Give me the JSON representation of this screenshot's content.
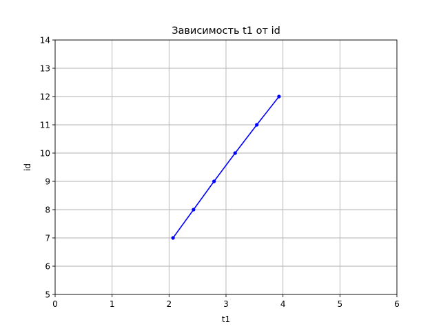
{
  "chart_data": {
    "type": "line",
    "title": "Зависимость t1 от id",
    "xlabel": "t1",
    "ylabel": "id",
    "xlim": [
      0,
      6
    ],
    "ylim": [
      5,
      14
    ],
    "xticks": [
      "0",
      "1",
      "2",
      "3",
      "4",
      "5",
      "6"
    ],
    "yticks": [
      "5",
      "6",
      "7",
      "8",
      "9",
      "10",
      "11",
      "12",
      "13",
      "14"
    ],
    "grid": true,
    "series": [
      {
        "color": "#0000ff",
        "marker": "circle",
        "points": [
          {
            "x": 2.07,
            "y": 7
          },
          {
            "x": 2.43,
            "y": 8
          },
          {
            "x": 2.79,
            "y": 9
          },
          {
            "x": 3.16,
            "y": 10
          },
          {
            "x": 3.54,
            "y": 11
          },
          {
            "x": 3.93,
            "y": 12
          }
        ]
      }
    ]
  }
}
